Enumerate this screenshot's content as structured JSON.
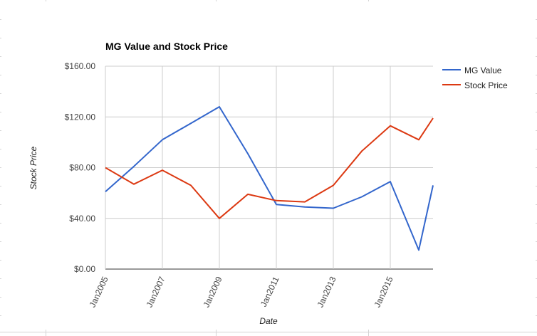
{
  "chart_data": {
    "type": "line",
    "title": "MG Value and Stock Price",
    "xlabel": "Date",
    "ylabel": "Stock Price",
    "x_tick_labels": [
      "Jan2005",
      "Jan2007",
      "Jan2009",
      "Jan2011",
      "Jan2013",
      "Jan2015"
    ],
    "y_tick_labels": [
      "$0.00",
      "$40.00",
      "$80.00",
      "$120.00",
      "$160.00"
    ],
    "y_ticks": [
      0,
      40,
      80,
      120,
      160
    ],
    "ylim": [
      0,
      160
    ],
    "xlim": [
      2005,
      2016.5
    ],
    "grid": true,
    "legend_position": "right",
    "x": [
      2005,
      2006,
      2007,
      2008,
      2009,
      2010,
      2011,
      2012,
      2013,
      2014,
      2015,
      2016,
      2016.5
    ],
    "series": [
      {
        "name": "MG Value",
        "color": "#3366cc",
        "values": [
          61,
          81,
          102,
          115,
          128,
          91,
          51,
          49,
          48,
          57,
          69,
          15,
          66
        ]
      },
      {
        "name": "Stock Price",
        "color": "#dc3912",
        "values": [
          80,
          67,
          78,
          66,
          40,
          59,
          54,
          53,
          66,
          93,
          113,
          102,
          119
        ]
      }
    ]
  }
}
